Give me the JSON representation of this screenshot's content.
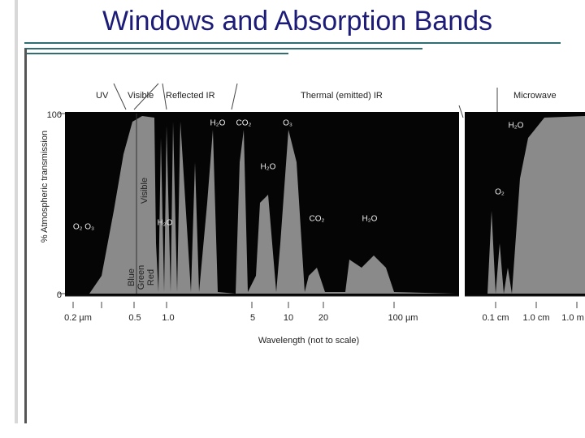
{
  "title": "Windows and Absorption Bands",
  "figure": {
    "regions": [
      "UV",
      "Visible",
      "Reflected IR",
      "Thermal (emitted) IR",
      "Microwave"
    ],
    "y_axis_label": "% Atmospheric transmission",
    "y_ticks": [
      "100",
      "0"
    ],
    "x_ticks": [
      "0.2 µm",
      "0.5",
      "1.0",
      "5",
      "10",
      "20",
      "100 µm",
      "0.1 cm",
      "1.0 cm",
      "1.0 m"
    ],
    "x_axis_label": "Wavelength (not to scale)",
    "absorbers": [
      "H₂O",
      "CO₂",
      "O₃",
      "H₂O",
      "CO₂",
      "H₂O",
      "O₂ O₃",
      "H₂O",
      "H₂O",
      "O₂"
    ],
    "visible_label": "Visible",
    "colors": [
      "Blue",
      "Green",
      "Red"
    ]
  }
}
